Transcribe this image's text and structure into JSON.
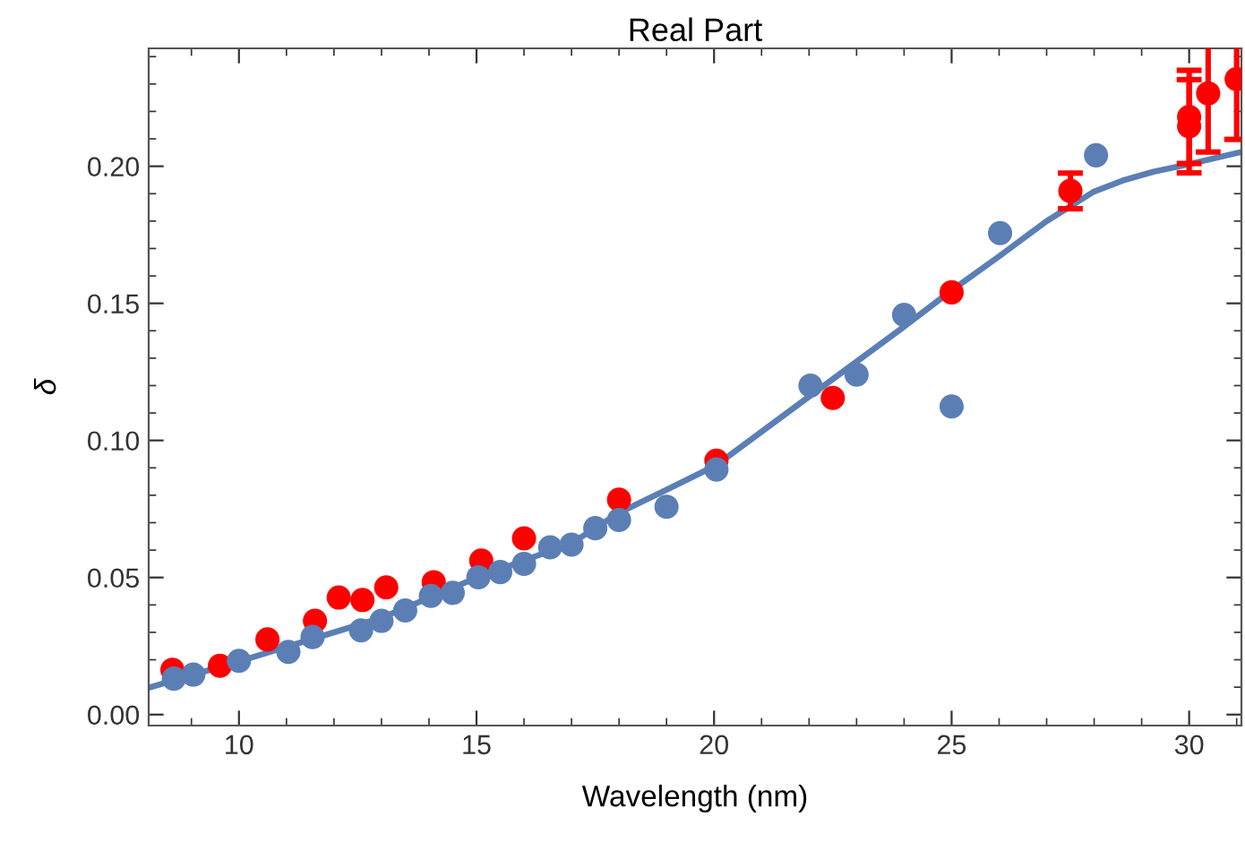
{
  "chart_data": {
    "type": "scatter",
    "title": "Real Part",
    "xlabel": "Wavelength (nm)",
    "ylabel": "δ",
    "xlim": [
      8.1,
      31.1
    ],
    "ylim": [
      -0.004,
      0.243
    ],
    "xticks": [
      10,
      15,
      20,
      25,
      30
    ],
    "yticks": [
      {
        "value": 0,
        "label": "0.00"
      },
      {
        "value": 0.05,
        "label": "0.05"
      },
      {
        "value": 0.1,
        "label": "0.10"
      },
      {
        "value": 0.15,
        "label": "0.15"
      },
      {
        "value": 0.2,
        "label": "0.20"
      }
    ],
    "grid": false,
    "legend": false,
    "series": [
      {
        "marker": "circle",
        "color": "#ff0000",
        "x": [
          8.6,
          9.6,
          10.6,
          11.6,
          12.1,
          12.6,
          13.1,
          14.1,
          15.1,
          16.0,
          18.0,
          20.05,
          22.5,
          25.0,
          27.5,
          30.0,
          30.0,
          30.4,
          31.0
        ],
        "values": [
          0.0163,
          0.0178,
          0.0274,
          0.0342,
          0.0427,
          0.0418,
          0.0464,
          0.0483,
          0.0562,
          0.0643,
          0.0784,
          0.0926,
          0.1155,
          0.154,
          0.191,
          0.218,
          0.2146,
          0.2266,
          0.2318
        ],
        "errors": [
          null,
          null,
          null,
          null,
          null,
          null,
          null,
          null,
          null,
          null,
          null,
          null,
          null,
          null,
          0.0065,
          0.017,
          0.017,
          0.0214,
          0.022
        ]
      },
      {
        "marker": "circle",
        "color": "#5b7fb5",
        "x": [
          8.63,
          9.04,
          10.0,
          11.04,
          11.55,
          12.57,
          13.0,
          13.5,
          14.04,
          14.5,
          15.04,
          15.5,
          16.0,
          16.55,
          17.0,
          17.5,
          18.0,
          19.0,
          20.05,
          22.03,
          23.0,
          24.0,
          25.0,
          26.02,
          28.04
        ],
        "values": [
          0.0131,
          0.0146,
          0.0196,
          0.0229,
          0.0283,
          0.0307,
          0.0342,
          0.038,
          0.0433,
          0.0444,
          0.0501,
          0.052,
          0.055,
          0.061,
          0.062,
          0.068,
          0.071,
          0.0758,
          0.0894,
          0.12,
          0.124,
          0.1458,
          0.1124,
          0.1756,
          0.204
        ]
      },
      {
        "type": "line",
        "color": "#5b7fb5",
        "x": [
          8.1,
          10.0,
          11.55,
          13.0,
          15.0,
          17.0,
          18.0,
          19.0,
          20.05,
          22.0,
          23.96,
          25.0,
          26.02,
          27.0,
          28.0,
          28.6,
          29.25,
          30.0,
          31.1
        ],
        "values": [
          0.0098,
          0.0194,
          0.0276,
          0.0353,
          0.0499,
          0.0625,
          0.0736,
          0.082,
          0.091,
          0.116,
          0.141,
          0.1547,
          0.1674,
          0.18,
          0.1908,
          0.1948,
          0.198,
          0.2008,
          0.2052
        ]
      }
    ]
  }
}
